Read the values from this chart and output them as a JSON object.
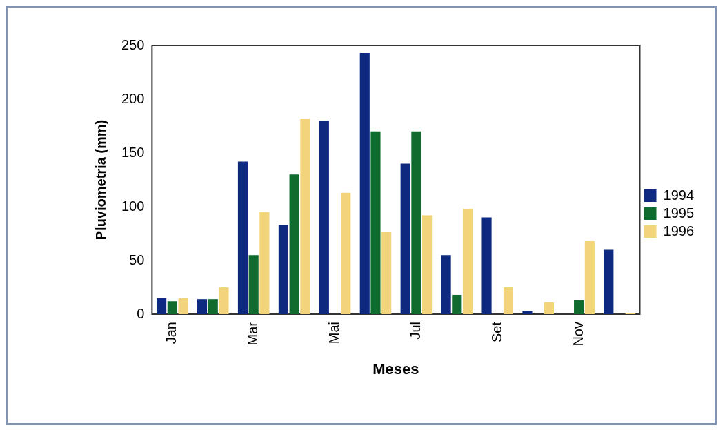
{
  "chart_data": {
    "type": "bar",
    "xlabel": "Meses",
    "ylabel": "Pluviometria (mm)",
    "categories": [
      "Jan",
      null,
      "Mar",
      null,
      "Mai",
      null,
      "Jul",
      null,
      "Set",
      null,
      "Nov",
      null
    ],
    "series": [
      {
        "name": "1994",
        "color": "#0d2a80",
        "values": [
          15,
          14,
          142,
          83,
          180,
          243,
          140,
          55,
          90,
          3,
          0,
          60
        ]
      },
      {
        "name": "1995",
        "color": "#0f6b2e",
        "values": [
          12,
          14,
          55,
          130,
          0,
          170,
          170,
          18,
          0,
          0,
          13,
          0
        ]
      },
      {
        "name": "1996",
        "color": "#f2d57a",
        "values": [
          15,
          25,
          95,
          182,
          113,
          77,
          92,
          98,
          25,
          11,
          68,
          1
        ]
      }
    ],
    "ylim": [
      0,
      250
    ],
    "yticks": [
      0,
      50,
      100,
      150,
      200,
      250
    ],
    "grid": false,
    "legend": "right"
  }
}
